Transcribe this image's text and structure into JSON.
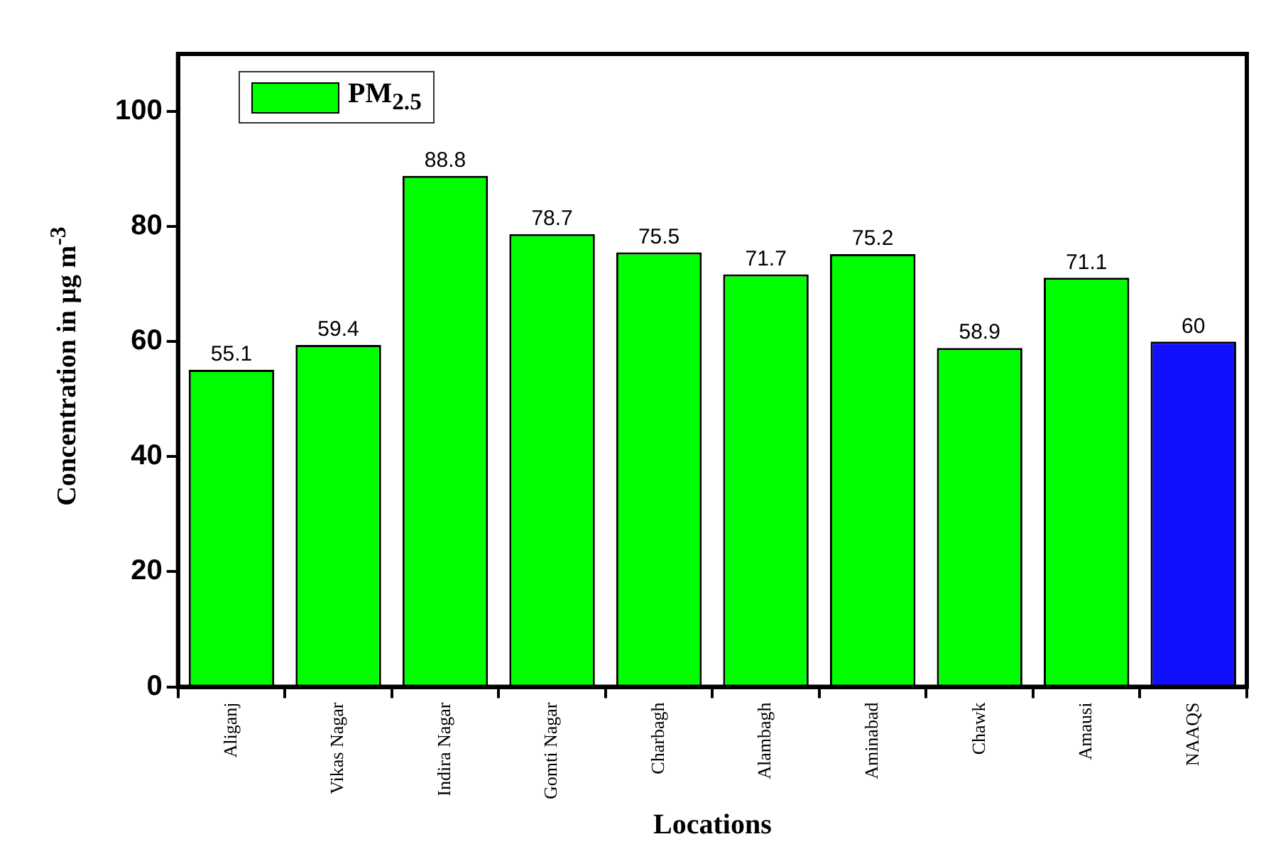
{
  "chart_data": {
    "type": "bar",
    "xlabel": "Locations",
    "ylabel": "Concentration in μg m$^{-3}$",
    "categories": [
      "Aliganj",
      "Vikas Nagar",
      "Indira Nagar",
      "Gomti Nagar",
      "Charbagh",
      "Alambagh",
      "Aminabad",
      "Chawk",
      "Amausi",
      "NAAQS"
    ],
    "series": [
      {
        "name": "PM$_{2.5}$",
        "color": "#00ff00",
        "colors": [
          "#00ff00",
          "#00ff00",
          "#00ff00",
          "#00ff00",
          "#00ff00",
          "#00ff00",
          "#00ff00",
          "#00ff00",
          "#00ff00",
          "#1010ff"
        ],
        "values": [
          55.1,
          59.4,
          88.8,
          78.7,
          75.5,
          71.7,
          75.2,
          58.9,
          71.1,
          60
        ]
      }
    ],
    "ylim": [
      0,
      110
    ],
    "yticks": [
      0,
      20,
      40,
      60,
      80,
      100
    ],
    "data_labels": true,
    "legend": "top left",
    "grid": false
  }
}
